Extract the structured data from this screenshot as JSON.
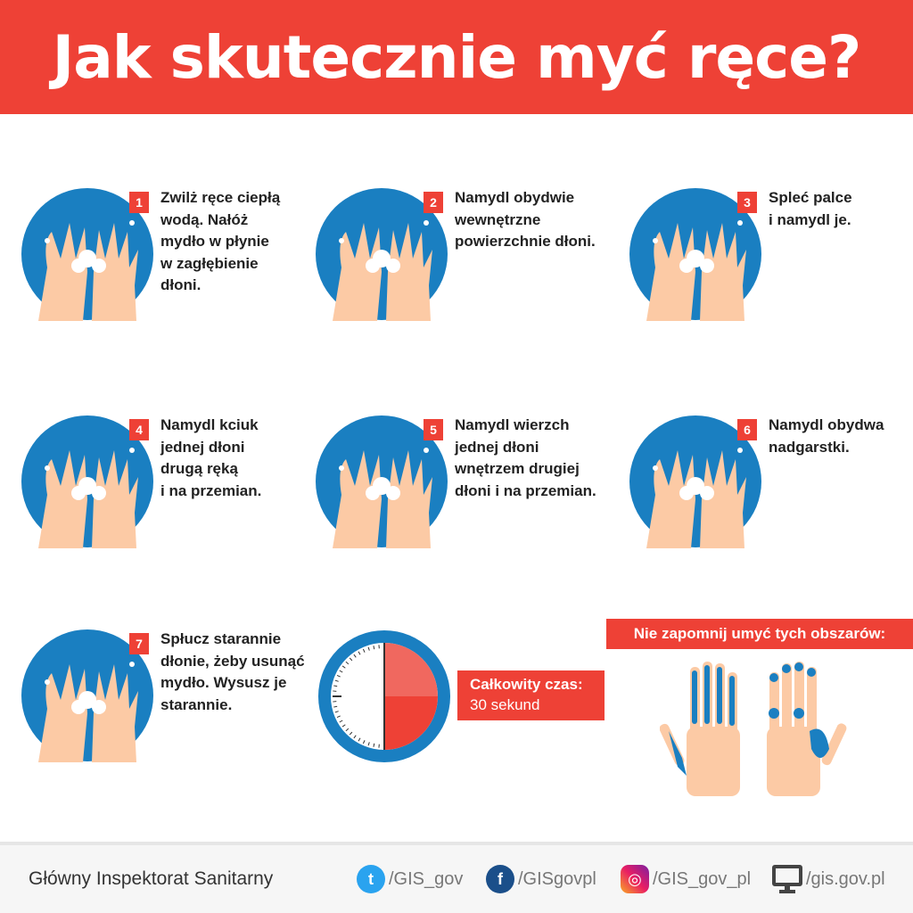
{
  "title": "Jak skutecznie myć ręce?",
  "steps": [
    {
      "number": "1",
      "text": "Zwilż ręce ciepłą\nwodą. Nałóż\nmydło w płynie\nw zagłębienie\ndłoni."
    },
    {
      "number": "2",
      "text": "Namydl obydwie\nwewnętrzne\npowierzchnie dłoni."
    },
    {
      "number": "3",
      "text": "Spleć palce\ni namydl je."
    },
    {
      "number": "4",
      "text": "Namydl kciuk\njednej dłoni\ndrugą ręką\ni na przemian."
    },
    {
      "number": "5",
      "text": "Namydl wierzch\njednej dłoni\nwnętrzem drugiej\ndłoni i na przemian."
    },
    {
      "number": "6",
      "text": "Namydl obydwa\nnadgarstki."
    },
    {
      "number": "7",
      "text": "Spłucz starannie\ndłonie, żeby usunąć\nmydło. Wysusz je\nstarannie."
    }
  ],
  "total_time": {
    "label": "Całkowity czas:",
    "value": "30 sekund",
    "seconds": 30
  },
  "reminder": "Nie zapomnij umyć tych obszarów:",
  "footer": {
    "org": "Główny Inspektorat Sanitarny",
    "twitter": "/GIS_gov",
    "facebook": "/GISgovpl",
    "instagram": "/GIS_gov_pl",
    "website": "/gis.gov.pl"
  },
  "colors": {
    "red": "#ee4136",
    "blue": "#1a7fc1",
    "skin": "#fccaa5",
    "twitter": "#2aa3ef",
    "facebook": "#1b4f8a"
  }
}
